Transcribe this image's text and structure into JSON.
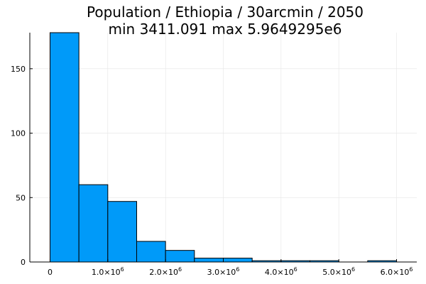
{
  "chart_data": {
    "type": "bar",
    "title": "Population / Ethiopia / 30arcmin / 2050",
    "subtitle": "min 3411.091  max 5.9649295e6",
    "xlabel": "",
    "ylabel": "",
    "bin_edges": [
      0,
      500000,
      1000000,
      1500000,
      2000000,
      2500000,
      3000000,
      3500000,
      4000000,
      4500000,
      5000000,
      5500000,
      6000000
    ],
    "values": [
      178,
      60,
      47,
      16,
      9,
      3,
      3,
      1,
      1,
      1,
      0,
      1
    ],
    "xlim": [
      -350000,
      6350000
    ],
    "ylim": [
      0,
      178
    ],
    "x_ticks": [
      {
        "value": 0,
        "label": "0",
        "exp": ""
      },
      {
        "value": 1000000,
        "label": "1.0×10",
        "exp": "6"
      },
      {
        "value": 2000000,
        "label": "2.0×10",
        "exp": "6"
      },
      {
        "value": 3000000,
        "label": "3.0×10",
        "exp": "6"
      },
      {
        "value": 4000000,
        "label": "4.0×10",
        "exp": "6"
      },
      {
        "value": 5000000,
        "label": "5.0×10",
        "exp": "6"
      },
      {
        "value": 6000000,
        "label": "6.0×10",
        "exp": "6"
      }
    ],
    "y_ticks": [
      0,
      50,
      100,
      150
    ],
    "grid": true,
    "legend": "none",
    "colors": {
      "bar": "#009af9",
      "bar_stroke": "#000000",
      "grid": "#e5e5e5",
      "axis": "#000000"
    }
  }
}
